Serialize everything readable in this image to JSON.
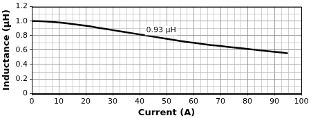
{
  "chart_data": {
    "type": "line",
    "x_label": "Current (A)",
    "y_label": "Inductance (µH)",
    "x": [
      0,
      5,
      10,
      15,
      20,
      25,
      30,
      35,
      40,
      45,
      50,
      55,
      60,
      65,
      70,
      75,
      80,
      85,
      90,
      95
    ],
    "values": [
      1.0,
      0.995,
      0.98,
      0.96,
      0.935,
      0.905,
      0.875,
      0.845,
      0.815,
      0.785,
      0.755,
      0.725,
      0.7,
      0.675,
      0.655,
      0.635,
      0.615,
      0.595,
      0.575,
      0.555
    ],
    "color": "#000000",
    "xlim": [
      0,
      100
    ],
    "xticks": [
      0,
      10,
      20,
      30,
      40,
      50,
      60,
      70,
      80,
      90,
      100
    ],
    "ylim": [
      0,
      1.2
    ],
    "yticks": [
      0,
      0.2,
      0.4,
      0.6,
      0.8,
      {
        "value": 1.0,
        "label": "1.0"
      },
      1.2
    ],
    "grid": true,
    "annotations": [
      {
        "text": "0.93 µH",
        "x": 48,
        "y": 0.87
      }
    ]
  }
}
